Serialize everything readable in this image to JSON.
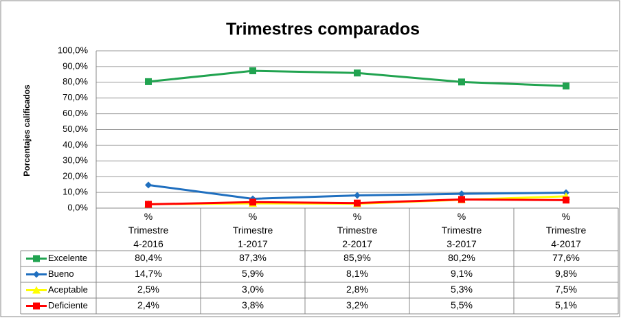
{
  "chart_data": {
    "type": "line",
    "title": "Trimestres comparados",
    "y_label": "Porcentajes calificados",
    "categories": [
      "% Trimestre 4-2016",
      "% Trimestre 1-2017",
      "% Trimestre 2-2017",
      "% Trimestre 3-2017",
      "% Trimestre 4-2017"
    ],
    "series": [
      {
        "name": "Excelente",
        "color": "#21a350",
        "marker": "square",
        "values": [
          80.4,
          87.3,
          85.9,
          80.2,
          77.6
        ],
        "value_labels": [
          "80,4%",
          "87,3%",
          "85,9%",
          "80,2%",
          "77,6%"
        ]
      },
      {
        "name": "Bueno",
        "color": "#1f6fbf",
        "marker": "diamond",
        "values": [
          14.7,
          5.9,
          8.1,
          9.1,
          9.8
        ],
        "value_labels": [
          "14,7%",
          "5,9%",
          "8,1%",
          "9,1%",
          "9,8%"
        ]
      },
      {
        "name": "Aceptable",
        "color": "#ffff00",
        "marker": "triangle",
        "values": [
          2.5,
          3.0,
          2.8,
          5.3,
          7.5
        ],
        "value_labels": [
          "2,5%",
          "3,0%",
          "2,8%",
          "5,3%",
          "7,5%"
        ]
      },
      {
        "name": "Deficiente",
        "color": "#ff0000",
        "marker": "square",
        "values": [
          2.4,
          3.8,
          3.2,
          5.5,
          5.1
        ],
        "value_labels": [
          "2,4%",
          "3,8%",
          "3,2%",
          "5,5%",
          "5,1%"
        ]
      }
    ],
    "ylim": [
      0,
      100
    ],
    "yticks": [
      {
        "value": 0,
        "label": "0,0%"
      },
      {
        "value": 10,
        "label": "10,0%"
      },
      {
        "value": 20,
        "label": "20,0%"
      },
      {
        "value": 30,
        "label": "30,0%"
      },
      {
        "value": 40,
        "label": "40,0%"
      },
      {
        "value": 50,
        "label": "50,0%"
      },
      {
        "value": 60,
        "label": "60,0%"
      },
      {
        "value": 70,
        "label": "70,0%"
      },
      {
        "value": 80,
        "label": "80,0%"
      },
      {
        "value": 90,
        "label": "90,0%"
      },
      {
        "value": 100,
        "label": "100,0%"
      }
    ],
    "grid": true
  }
}
